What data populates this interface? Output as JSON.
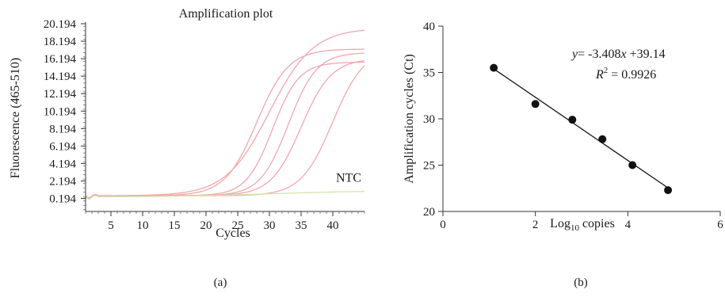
{
  "chart_data": [
    {
      "type": "line",
      "panel_label": "(a)",
      "title": "Amplification plot",
      "xlabel": "Cycles",
      "ylabel": "Fluorescence (465-510)",
      "xlim": [
        1,
        45
      ],
      "ylim": [
        -1.3,
        20.194
      ],
      "x_ticks": [
        5,
        10,
        15,
        20,
        25,
        30,
        35,
        40
      ],
      "y_ticks": [
        0.194,
        2.194,
        4.194,
        6.194,
        8.194,
        10.194,
        12.194,
        14.194,
        16.194,
        18.194,
        20.194
      ],
      "annotations": [
        {
          "text": "NTC",
          "x": 40.5,
          "y": 2.1
        }
      ],
      "series": [
        {
          "color": "#f3a6ad",
          "curve": {
            "baseline": 0.5,
            "plateau": 19.7,
            "midpoint": 30.0,
            "slope": 0.29
          }
        },
        {
          "color": "#f3a6ad",
          "curve": {
            "baseline": 0.5,
            "plateau": 17.3,
            "midpoint": 28.0,
            "slope": 0.4
          }
        },
        {
          "color": "#f3a6ad",
          "curve": {
            "baseline": 0.5,
            "plateau": 15.8,
            "midpoint": 30.5,
            "slope": 0.48
          }
        },
        {
          "color": "#f3a6ad",
          "curve": {
            "baseline": 0.5,
            "plateau": 16.9,
            "midpoint": 33.0,
            "slope": 0.45
          }
        },
        {
          "color": "#f3a6ad",
          "curve": {
            "baseline": 0.5,
            "plateau": 16.2,
            "midpoint": 35.0,
            "slope": 0.42
          }
        },
        {
          "color": "#f3a6ad",
          "curve": {
            "baseline": 0.5,
            "plateau": 17.4,
            "midpoint": 40.0,
            "slope": 0.4
          }
        },
        {
          "color": "#cfe8a8",
          "curve": {
            "baseline": 0.35,
            "plateau": 1.1,
            "midpoint": 30.0,
            "slope": 0.12
          }
        }
      ]
    },
    {
      "type": "scatter",
      "panel_label": "(b)",
      "xlabel": "Log10 copies",
      "ylabel": "Amplification cycles (Ct)",
      "xlim": [
        0,
        6
      ],
      "ylim": [
        20,
        40
      ],
      "x_ticks": [
        0,
        2,
        4,
        6
      ],
      "y_ticks": [
        20,
        25,
        30,
        35,
        40
      ],
      "points": [
        {
          "x": 1.1,
          "y": 35.5
        },
        {
          "x": 2.0,
          "y": 31.6
        },
        {
          "x": 2.8,
          "y": 29.9
        },
        {
          "x": 3.45,
          "y": 27.8
        },
        {
          "x": 4.1,
          "y": 25.0
        },
        {
          "x": 4.87,
          "y": 22.3
        }
      ],
      "fit": {
        "slope": -3.408,
        "intercept": 39.14,
        "x_range": [
          1.1,
          4.87
        ],
        "r_squared": 0.9926
      },
      "equation_text": "= -3.408",
      "equation_tail": " +39.14",
      "r2_text": " = 0.9926"
    }
  ]
}
